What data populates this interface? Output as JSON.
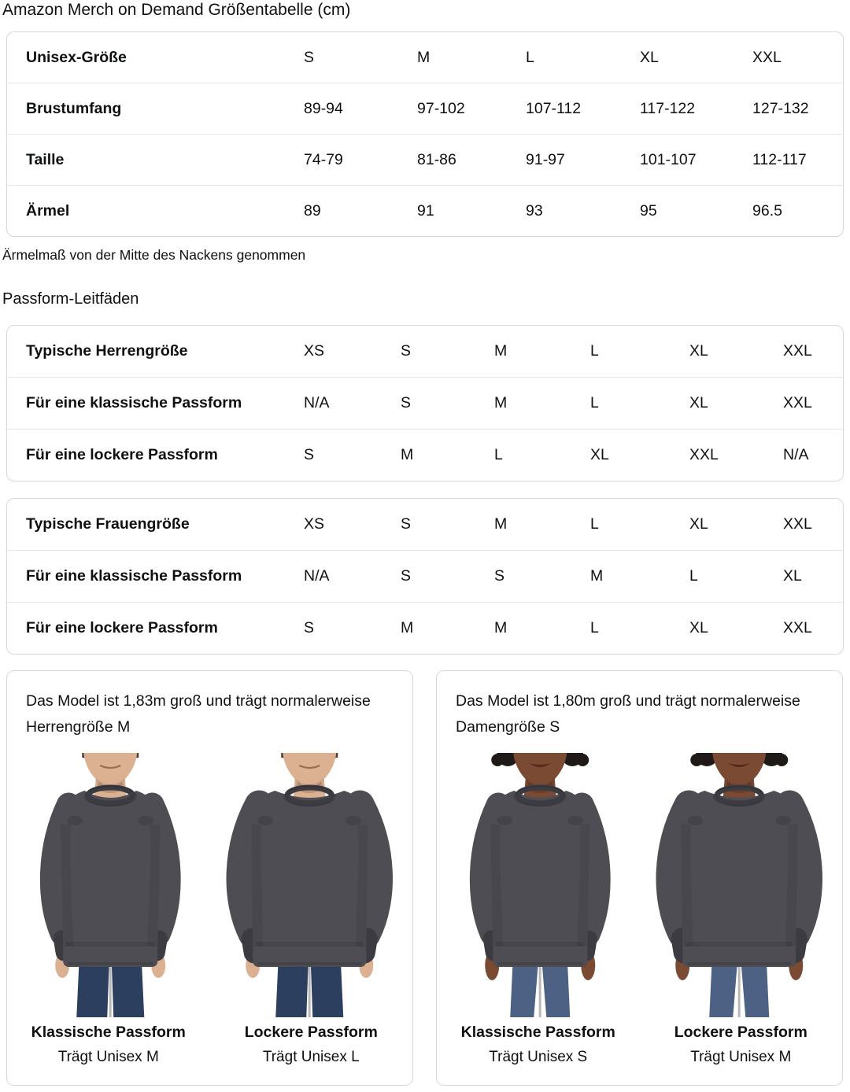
{
  "page": {
    "title": "Amazon Merch on Demand Größentabelle (cm)",
    "note": "Ärmelmaß von der Mitte des Nackens genommen",
    "fit_heading": "Passform-Leitfäden"
  },
  "size_table": {
    "header": {
      "label": "Unisex-Größe",
      "cols": [
        "S",
        "M",
        "L",
        "XL",
        "XXL"
      ]
    },
    "rows": [
      {
        "label": "Brustumfang",
        "values": [
          "89-94",
          "97-102",
          "107-112",
          "117-122",
          "127-132"
        ]
      },
      {
        "label": "Taille",
        "values": [
          "74-79",
          "81-86",
          "91-97",
          "101-107",
          "112-117"
        ]
      },
      {
        "label": "Ärmel",
        "values": [
          "89",
          "91",
          "93",
          "95",
          "96.5"
        ]
      }
    ]
  },
  "fit_tables": [
    {
      "header": {
        "label": "Typische Herrengröße",
        "cols": [
          "XS",
          "S",
          "M",
          "L",
          "XL",
          "XXL"
        ]
      },
      "rows": [
        {
          "label": "Für eine klassische Passform",
          "values": [
            "N/A",
            "S",
            "M",
            "L",
            "XL",
            "XXL"
          ]
        },
        {
          "label": "Für eine lockere Passform",
          "values": [
            "S",
            "M",
            "L",
            "XL",
            "XXL",
            "N/A"
          ]
        }
      ]
    },
    {
      "header": {
        "label": "Typische Frauengröße",
        "cols": [
          "XS",
          "S",
          "M",
          "L",
          "XL",
          "XXL"
        ]
      },
      "rows": [
        {
          "label": "Für eine klassische Passform",
          "values": [
            "N/A",
            "S",
            "S",
            "M",
            "L",
            "XL"
          ]
        },
        {
          "label": "Für eine lockere Passform",
          "values": [
            "S",
            "M",
            "M",
            "L",
            "XL",
            "XXL"
          ]
        }
      ]
    }
  ],
  "model_cards": [
    {
      "description": "Das Model ist 1,83m groß und trägt normalerweise Herrengröße M",
      "photos": [
        {
          "fit_label": "Klassische Passform",
          "size_label": "Trägt Unisex M",
          "photo": "male-model-classic-fit"
        },
        {
          "fit_label": "Lockere Passform",
          "size_label": "Trägt Unisex L",
          "photo": "male-model-loose-fit"
        }
      ]
    },
    {
      "description": "Das Model ist 1,80m groß und trägt normalerweise Damengröße S",
      "photos": [
        {
          "fit_label": "Klassische Passform",
          "size_label": "Trägt Unisex S",
          "photo": "female-model-classic-fit"
        },
        {
          "fit_label": "Lockere Passform",
          "size_label": "Trägt Unisex M",
          "photo": "female-model-loose-fit"
        }
      ]
    }
  ],
  "colors": {
    "border": "#d5d9d9",
    "divider": "#e7e7e7",
    "text": "#0f1111",
    "sweatshirt": "#4e4d53",
    "sweatshirt_dark": "#3c3b41",
    "male_skin": "#dcb192",
    "male_hair": "#4a3a2e",
    "male_jeans": "#2c3f5e",
    "female_skin": "#7a4a33",
    "female_hair": "#1f1a17",
    "female_jeans": "#4c6184"
  }
}
